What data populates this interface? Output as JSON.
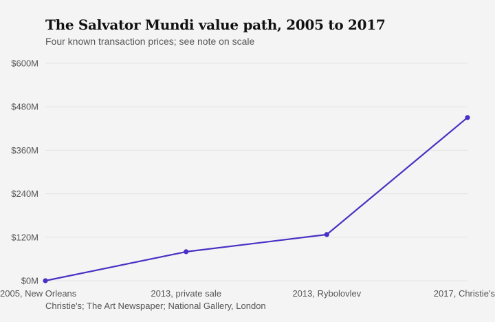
{
  "title": "The Salvator Mundi value path, 2005 to 2017",
  "subtitle": "Four known transaction prices; see note on scale",
  "source": "Christie's; The Art Newspaper; National Gallery, London",
  "colors": {
    "line": "#4a2fc4",
    "grid": "#e2e2e2",
    "background": "#f4f4f4",
    "axis_text": "#555555"
  },
  "chart_data": {
    "type": "line",
    "categories": [
      "2005, New Orleans",
      "2013, private sale",
      "2013, Rybolovlev",
      "2017, Christie's"
    ],
    "series": [
      {
        "values": [
          0.01,
          80,
          127.5,
          450.3
        ]
      }
    ],
    "y_ticks": [
      0,
      120,
      240,
      360,
      480,
      600
    ],
    "y_tick_labels": [
      "$0M",
      "$120M",
      "$240M",
      "$360M",
      "$480M",
      "$600M"
    ],
    "ylim": [
      0,
      600
    ],
    "grid": true,
    "markers": true,
    "legend": false
  }
}
